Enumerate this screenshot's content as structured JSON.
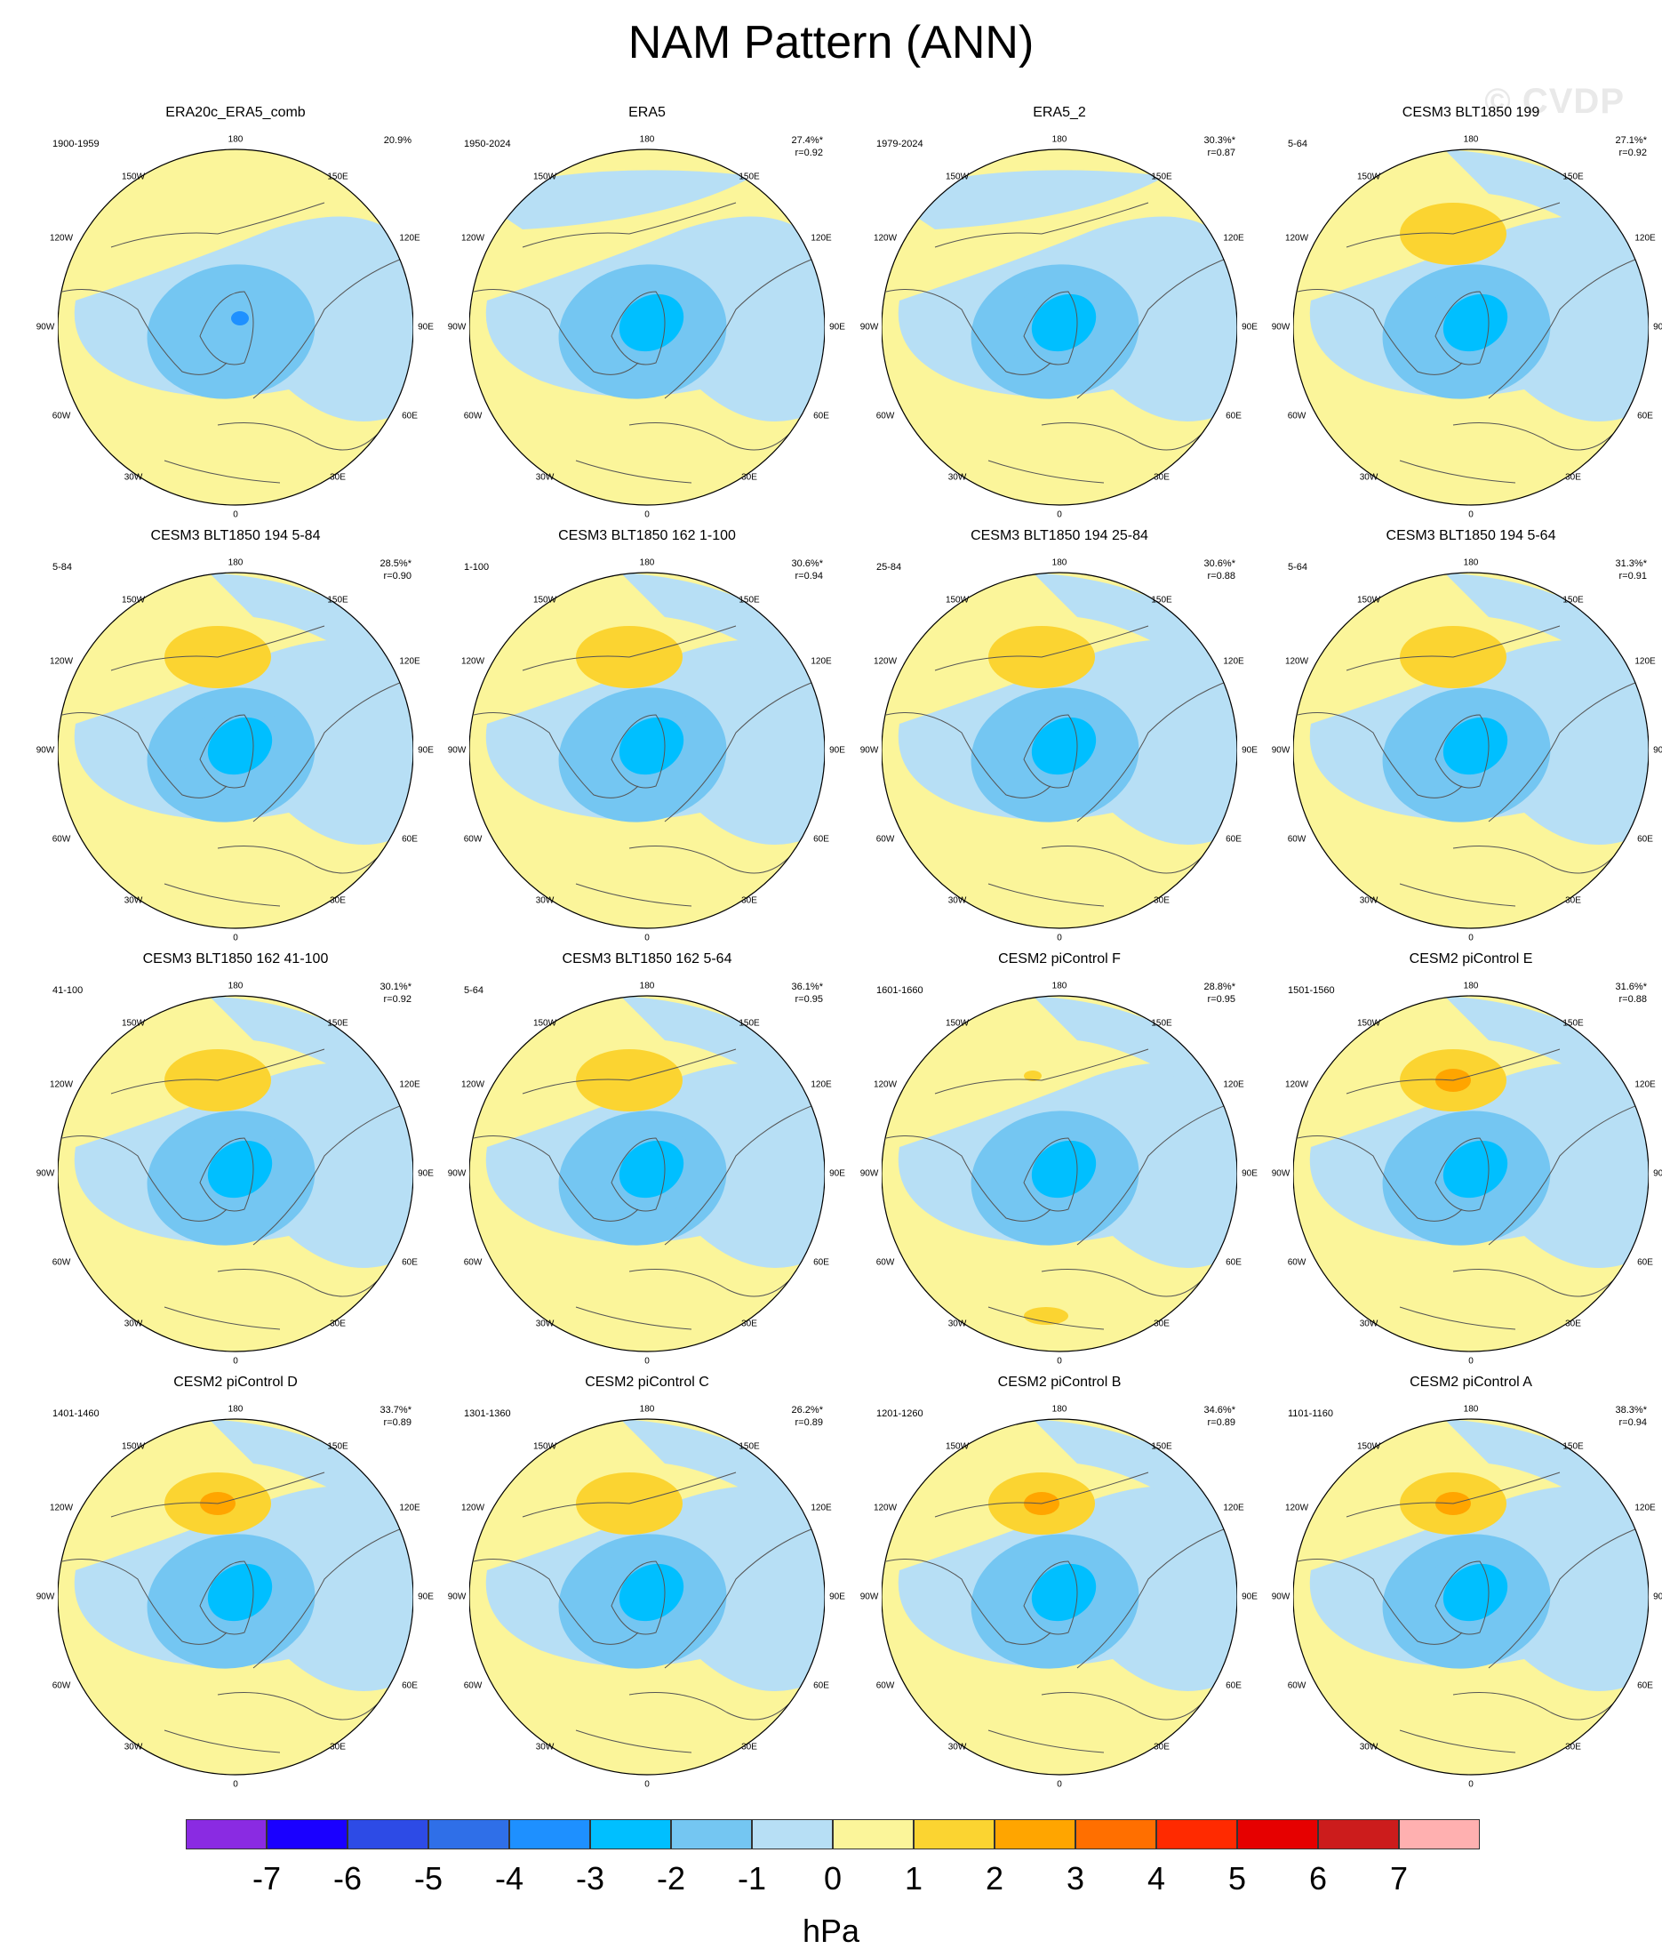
{
  "title": "NAM Pattern (ANN)",
  "watermark": "© CVDP",
  "colors": {
    "land_line": "#555555",
    "levels": [
      "#8a2be2",
      "#1a00ff",
      "#2d4be6",
      "#2f6fe8",
      "#1e90ff",
      "#00bfff",
      "#74c6f2",
      "#b7dff5",
      "#fbf59a",
      "#fbd431",
      "#ffa500",
      "#ff6f00",
      "#ff2a00",
      "#e60000",
      "#cc1c1c",
      "#ffb0b0"
    ]
  },
  "axis_labels": {
    "top": "180",
    "bottom": "0",
    "left": [
      "150W",
      "120W",
      "90W",
      "60W",
      "30W"
    ],
    "right": [
      "150E",
      "120E",
      "90E",
      "60E",
      "30E"
    ]
  },
  "panels": [
    {
      "title": "ERA20c_ERA5_comb",
      "period": "1900-1959",
      "pct": "20.9%",
      "r": "",
      "anomaly": "weak"
    },
    {
      "title": "ERA5",
      "period": "1950-2024",
      "pct": "27.4%*",
      "r": "r=0.92",
      "anomaly": "era5"
    },
    {
      "title": "ERA5_2",
      "period": "1979-2024",
      "pct": "30.3%*",
      "r": "r=0.87",
      "anomaly": "era5b"
    },
    {
      "title": "CESM3 BLT1850 199",
      "period": "5-64",
      "pct": "27.1%*",
      "r": "r=0.92",
      "anomaly": "model"
    },
    {
      "title": "CESM3 BLT1850 194 5-84",
      "period": "5-84",
      "pct": "28.5%*",
      "r": "r=0.90",
      "anomaly": "model"
    },
    {
      "title": "CESM3 BLT1850 162 1-100",
      "period": "1-100",
      "pct": "30.6%*",
      "r": "r=0.94",
      "anomaly": "model"
    },
    {
      "title": "CESM3 BLT1850 194 25-84",
      "period": "25-84",
      "pct": "30.6%*",
      "r": "r=0.88",
      "anomaly": "model"
    },
    {
      "title": "CESM3 BLT1850 194 5-64",
      "period": "5-64",
      "pct": "31.3%*",
      "r": "r=0.91",
      "anomaly": "model"
    },
    {
      "title": "CESM3 BLT1850 162 41-100",
      "period": "41-100",
      "pct": "30.1%*",
      "r": "r=0.92",
      "anomaly": "model"
    },
    {
      "title": "CESM3 BLT1850 162 5-64",
      "period": "5-64",
      "pct": "36.1%*",
      "r": "r=0.95",
      "anomaly": "model"
    },
    {
      "title": "CESM2 piControl F",
      "period": "1601-1660",
      "pct": "28.8%*",
      "r": "r=0.95",
      "anomaly": "cesm2"
    },
    {
      "title": "CESM2 piControl E",
      "period": "1501-1560",
      "pct": "31.6%*",
      "r": "r=0.88",
      "anomaly": "strong"
    },
    {
      "title": "CESM2 piControl D",
      "period": "1401-1460",
      "pct": "33.7%*",
      "r": "r=0.89",
      "anomaly": "strong"
    },
    {
      "title": "CESM2 piControl C",
      "period": "1301-1360",
      "pct": "26.2%*",
      "r": "r=0.89",
      "anomaly": "model"
    },
    {
      "title": "CESM2 piControl B",
      "period": "1201-1260",
      "pct": "34.6%*",
      "r": "r=0.89",
      "anomaly": "strong"
    },
    {
      "title": "CESM2 piControl A",
      "period": "1101-1160",
      "pct": "38.3%*",
      "r": "r=0.94",
      "anomaly": "strong"
    }
  ],
  "colorbar": {
    "ticks": [
      "-7",
      "-6",
      "-5",
      "-4",
      "-3",
      "-2",
      "-1",
      "0",
      "1",
      "2",
      "3",
      "4",
      "5",
      "6",
      "7"
    ],
    "units": "hPa"
  }
}
